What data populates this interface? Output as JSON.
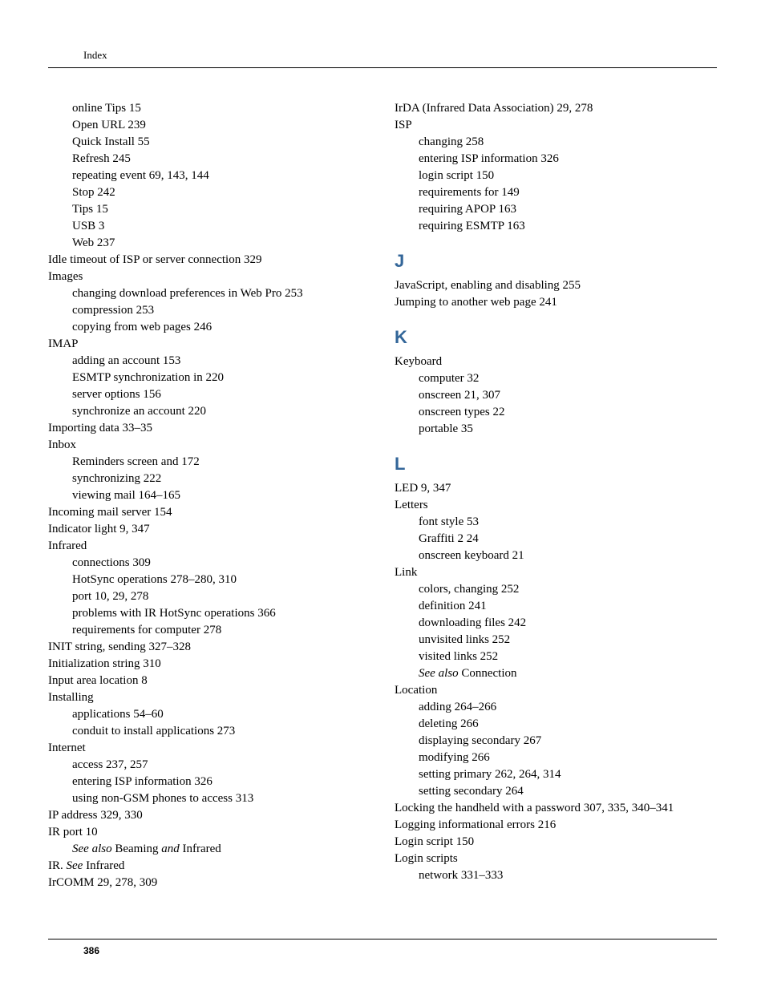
{
  "header": {
    "section": "Index"
  },
  "footer": {
    "page": "386"
  },
  "colors": {
    "heading": "#336699",
    "text": "#000000",
    "rule": "#000000",
    "bg": "#ffffff"
  },
  "typography": {
    "body_family": "Palatino",
    "body_size_pt": 11,
    "heading_family": "Arial",
    "heading_size_pt": 17,
    "heading_weight": "bold"
  },
  "left": {
    "items": [
      {
        "lvl": 1,
        "text": "online Tips  15"
      },
      {
        "lvl": 1,
        "text": "Open URL  239"
      },
      {
        "lvl": 1,
        "text": "Quick Install  55"
      },
      {
        "lvl": 1,
        "text": "Refresh  245"
      },
      {
        "lvl": 1,
        "text": "repeating event  69, 143, 144"
      },
      {
        "lvl": 1,
        "text": "Stop  242"
      },
      {
        "lvl": 1,
        "text": "Tips  15"
      },
      {
        "lvl": 1,
        "text": "USB  3"
      },
      {
        "lvl": 1,
        "text": "Web  237"
      },
      {
        "lvl": 0,
        "text": "Idle timeout of ISP or server connection  329"
      },
      {
        "lvl": 0,
        "text": "Images"
      },
      {
        "lvl": 1,
        "text": "changing download preferences in Web Pro  253"
      },
      {
        "lvl": 1,
        "text": "compression  253"
      },
      {
        "lvl": 1,
        "text": "copying from web pages  246"
      },
      {
        "lvl": 0,
        "text": "IMAP"
      },
      {
        "lvl": 1,
        "text": "adding an account  153"
      },
      {
        "lvl": 1,
        "text": "ESMTP synchronization in  220"
      },
      {
        "lvl": 1,
        "text": "server options  156"
      },
      {
        "lvl": 1,
        "text": "synchronize an account  220"
      },
      {
        "lvl": 0,
        "text": "Importing data  33–35"
      },
      {
        "lvl": 0,
        "text": "Inbox"
      },
      {
        "lvl": 1,
        "text": "Reminders screen and  172"
      },
      {
        "lvl": 1,
        "text": "synchronizing  222"
      },
      {
        "lvl": 1,
        "text": "viewing mail  164–165"
      },
      {
        "lvl": 0,
        "text": "Incoming mail server  154"
      },
      {
        "lvl": 0,
        "text": "Indicator light  9, 347"
      },
      {
        "lvl": 0,
        "text": "Infrared"
      },
      {
        "lvl": 1,
        "text": "connections  309"
      },
      {
        "lvl": 1,
        "text": "HotSync operations  278–280, 310"
      },
      {
        "lvl": 1,
        "text": "port  10, 29, 278"
      },
      {
        "lvl": 1,
        "text": "problems with IR HotSync operations  366"
      },
      {
        "lvl": 1,
        "text": "requirements for computer  278"
      },
      {
        "lvl": 0,
        "text": "INIT string, sending  327–328"
      },
      {
        "lvl": 0,
        "text": "Initialization string  310"
      },
      {
        "lvl": 0,
        "text": "Input area location  8"
      },
      {
        "lvl": 0,
        "text": "Installing"
      },
      {
        "lvl": 1,
        "text": "applications  54–60"
      },
      {
        "lvl": 1,
        "text": "conduit to install applications  273"
      },
      {
        "lvl": 0,
        "text": "Internet"
      },
      {
        "lvl": 1,
        "text": "access  237, 257"
      },
      {
        "lvl": 1,
        "text": "entering ISP information  326"
      },
      {
        "lvl": 1,
        "text": "using non-GSM phones to access  313"
      },
      {
        "lvl": 0,
        "text": "IP address  329, 330"
      },
      {
        "lvl": 0,
        "text": "IR port  10"
      },
      {
        "lvl": 1,
        "html": "<span class=\"italic\">See also</span> Beaming <span class=\"italic\">and</span> Infrared"
      },
      {
        "lvl": 0,
        "html": "IR. <span class=\"italic\">See</span> Infrared"
      },
      {
        "lvl": 0,
        "text": "IrCOMM  29, 278, 309"
      }
    ]
  },
  "right": {
    "blocks": [
      {
        "heading": null,
        "items": [
          {
            "lvl": 0,
            "text": "IrDA (Infrared Data Association)  29, 278"
          },
          {
            "lvl": 0,
            "text": "ISP"
          },
          {
            "lvl": 1,
            "text": "changing  258"
          },
          {
            "lvl": 1,
            "text": "entering ISP information  326"
          },
          {
            "lvl": 1,
            "text": "login script  150"
          },
          {
            "lvl": 1,
            "text": "requirements for  149"
          },
          {
            "lvl": 1,
            "text": "requiring APOP  163"
          },
          {
            "lvl": 1,
            "text": "requiring ESMTP  163"
          }
        ]
      },
      {
        "heading": "J",
        "items": [
          {
            "lvl": 0,
            "text": "JavaScript, enabling and disabling  255"
          },
          {
            "lvl": 0,
            "text": "Jumping to another web page  241"
          }
        ]
      },
      {
        "heading": "K",
        "items": [
          {
            "lvl": 0,
            "text": "Keyboard"
          },
          {
            "lvl": 1,
            "text": "computer  32"
          },
          {
            "lvl": 1,
            "text": "onscreen  21, 307"
          },
          {
            "lvl": 1,
            "text": "onscreen types  22"
          },
          {
            "lvl": 1,
            "text": "portable  35"
          }
        ]
      },
      {
        "heading": "L",
        "items": [
          {
            "lvl": 0,
            "text": "LED  9, 347"
          },
          {
            "lvl": 0,
            "text": "Letters"
          },
          {
            "lvl": 1,
            "text": "font style  53"
          },
          {
            "lvl": 1,
            "text": "Graffiti 2  24"
          },
          {
            "lvl": 1,
            "text": "onscreen keyboard  21"
          },
          {
            "lvl": 0,
            "text": "Link"
          },
          {
            "lvl": 1,
            "text": "colors, changing  252"
          },
          {
            "lvl": 1,
            "text": "definition  241"
          },
          {
            "lvl": 1,
            "text": "downloading files  242"
          },
          {
            "lvl": 1,
            "text": "unvisited links  252"
          },
          {
            "lvl": 1,
            "text": "visited links  252"
          },
          {
            "lvl": 1,
            "html": "<span class=\"italic\">See also</span> Connection"
          },
          {
            "lvl": 0,
            "text": "Location"
          },
          {
            "lvl": 1,
            "text": "adding  264–266"
          },
          {
            "lvl": 1,
            "text": "deleting  266"
          },
          {
            "lvl": 1,
            "text": "displaying secondary  267"
          },
          {
            "lvl": 1,
            "text": "modifying  266"
          },
          {
            "lvl": 1,
            "text": "setting primary  262, 264, 314"
          },
          {
            "lvl": 1,
            "text": "setting secondary  264"
          },
          {
            "lvl": 0,
            "text": "Locking the handheld with a password  307, 335, 340–341"
          },
          {
            "lvl": 0,
            "text": "Logging informational errors  216"
          },
          {
            "lvl": 0,
            "text": "Login script  150"
          },
          {
            "lvl": 0,
            "text": "Login scripts"
          },
          {
            "lvl": 1,
            "text": "network  331–333"
          }
        ]
      }
    ]
  }
}
